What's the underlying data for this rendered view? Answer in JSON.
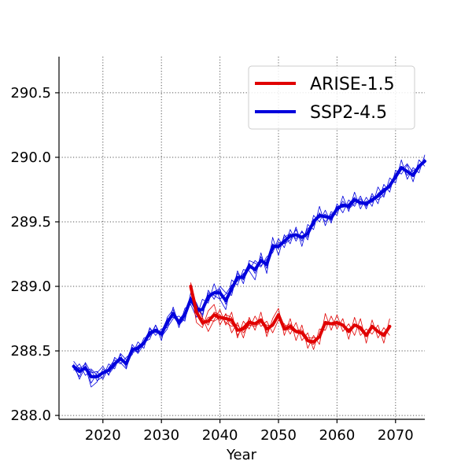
{
  "chart_data": {
    "type": "line",
    "title": "",
    "xlabel": "Year",
    "ylabel": "",
    "xlim": [
      2012.5,
      2075
    ],
    "ylim": [
      287.97,
      290.78
    ],
    "x_ticks": [
      2020,
      2030,
      2040,
      2050,
      2060,
      2070
    ],
    "y_ticks": [
      288.0,
      288.5,
      289.0,
      289.5,
      290.0,
      290.5
    ],
    "x_tick_labels": [
      "2020",
      "2030",
      "2040",
      "2050",
      "2060",
      "2070"
    ],
    "y_tick_labels": [
      "288.0",
      "288.5",
      "289.0",
      "289.5",
      "290.0",
      "290.5"
    ],
    "grid": "dotted",
    "legend_position": "top-right",
    "legend": [
      {
        "label": "ARISE-1.5",
        "color": "#e00000"
      },
      {
        "label": "SSP2-4.5",
        "color": "#0000dd"
      }
    ],
    "series": [
      {
        "name": "SSP2-4.5",
        "color": "#0000dd",
        "role": "mean",
        "x": [
          2015,
          2016,
          2017,
          2018,
          2019,
          2020,
          2021,
          2022,
          2023,
          2024,
          2025,
          2026,
          2027,
          2028,
          2029,
          2030,
          2031,
          2032,
          2033,
          2034,
          2035,
          2036,
          2037,
          2038,
          2039,
          2040,
          2041,
          2042,
          2043,
          2044,
          2045,
          2046,
          2047,
          2048,
          2049,
          2050,
          2051,
          2052,
          2053,
          2054,
          2055,
          2056,
          2057,
          2058,
          2059,
          2060,
          2061,
          2062,
          2063,
          2064,
          2065,
          2066,
          2067,
          2068,
          2069,
          2070,
          2071,
          2072,
          2073,
          2074,
          2075
        ],
        "y": [
          288.38,
          288.34,
          288.37,
          288.3,
          288.3,
          288.33,
          288.35,
          288.4,
          288.44,
          288.4,
          288.51,
          288.52,
          288.56,
          288.64,
          288.66,
          288.63,
          288.72,
          288.79,
          288.72,
          288.78,
          288.9,
          288.82,
          288.82,
          288.92,
          288.95,
          288.95,
          288.89,
          288.98,
          289.07,
          289.07,
          289.16,
          289.13,
          289.2,
          289.17,
          289.31,
          289.31,
          289.35,
          289.39,
          289.4,
          289.38,
          289.41,
          289.5,
          289.55,
          289.54,
          289.53,
          289.6,
          289.63,
          289.62,
          289.67,
          289.65,
          289.64,
          289.67,
          289.7,
          289.74,
          289.78,
          289.85,
          289.92,
          289.89,
          289.86,
          289.93,
          289.97
        ]
      },
      {
        "name": "ARISE-1.5",
        "color": "#e00000",
        "role": "mean",
        "x": [
          2035,
          2036,
          2037,
          2038,
          2039,
          2040,
          2041,
          2042,
          2043,
          2044,
          2045,
          2046,
          2047,
          2048,
          2049,
          2050,
          2051,
          2052,
          2053,
          2054,
          2055,
          2056,
          2057,
          2058,
          2059,
          2060,
          2061,
          2062,
          2063,
          2064,
          2065,
          2066,
          2067,
          2068,
          2069
        ],
        "y": [
          289.0,
          288.8,
          288.72,
          288.73,
          288.78,
          288.76,
          288.75,
          288.74,
          288.66,
          288.67,
          288.72,
          288.71,
          288.74,
          288.67,
          288.7,
          288.78,
          288.67,
          288.69,
          288.65,
          288.64,
          288.58,
          288.57,
          288.61,
          288.72,
          288.71,
          288.72,
          288.7,
          288.65,
          288.7,
          288.68,
          288.62,
          288.69,
          288.65,
          288.62,
          288.69
        ]
      }
    ],
    "ensemble_members": [
      {
        "series": "SSP2-4.5",
        "x_start": 2015,
        "y": [
          288.42,
          288.36,
          288.4,
          288.25,
          288.33,
          288.38,
          288.31,
          288.45,
          288.41,
          288.36,
          288.55,
          288.49,
          288.6,
          288.61,
          288.7,
          288.58,
          288.76,
          288.82,
          288.68,
          288.83,
          288.86,
          288.76,
          288.9,
          288.87,
          289.02,
          288.9,
          288.82,
          289.05,
          289.01,
          289.13,
          289.12,
          289.05,
          289.26,
          289.1,
          289.38,
          289.24,
          289.4,
          289.33,
          289.46,
          289.31,
          289.48,
          289.44,
          289.62,
          289.47,
          289.58,
          289.55,
          289.7,
          289.58,
          289.73,
          289.6,
          289.69,
          289.62,
          289.77,
          289.69,
          289.84,
          289.8,
          289.98,
          289.83,
          289.92,
          289.88,
          290.02
        ]
      },
      {
        "series": "SSP2-4.5",
        "x_start": 2015,
        "y": [
          288.35,
          288.4,
          288.31,
          288.35,
          288.27,
          288.3,
          288.4,
          288.36,
          288.48,
          288.43,
          288.47,
          288.57,
          288.52,
          288.68,
          288.62,
          288.67,
          288.68,
          288.75,
          288.77,
          288.73,
          288.95,
          288.87,
          288.76,
          288.97,
          288.9,
          289.0,
          288.95,
          288.93,
          289.12,
          289.02,
          289.2,
          289.18,
          289.15,
          289.23,
          289.26,
          289.37,
          289.3,
          289.44,
          289.35,
          289.43,
          289.36,
          289.55,
          289.5,
          289.59,
          289.49,
          289.64,
          289.57,
          289.67,
          289.62,
          289.7,
          289.6,
          289.72,
          289.64,
          289.79,
          289.73,
          289.9,
          289.87,
          289.94,
          289.81,
          289.98,
          289.93
        ]
      },
      {
        "series": "SSP2-4.5",
        "x_start": 2015,
        "y": [
          288.37,
          288.3,
          288.41,
          288.33,
          288.34,
          288.28,
          288.37,
          288.43,
          288.4,
          288.45,
          288.49,
          288.5,
          288.57,
          288.59,
          288.7,
          288.61,
          288.67,
          288.84,
          288.7,
          288.75,
          288.88,
          288.86,
          288.78,
          288.95,
          288.93,
          288.9,
          288.94,
          289.01,
          289.04,
          289.1,
          289.13,
          289.2,
          289.16,
          289.21,
          289.28,
          289.34,
          289.33,
          289.36,
          289.44,
          289.35,
          289.45,
          289.47,
          289.57,
          289.5,
          289.56,
          289.58,
          289.66,
          289.6,
          289.64,
          289.68,
          289.62,
          289.7,
          289.67,
          289.71,
          289.8,
          289.83,
          289.9,
          289.95,
          289.88,
          289.94,
          289.96
        ]
      },
      {
        "series": "SSP2-4.5",
        "x_start": 2015,
        "y": [
          288.4,
          288.28,
          288.38,
          288.22,
          288.26,
          288.36,
          288.32,
          288.38,
          288.47,
          288.37,
          288.53,
          288.48,
          288.55,
          288.67,
          288.64,
          288.65,
          288.75,
          288.76,
          288.74,
          288.8,
          288.92,
          288.78,
          288.83,
          288.89,
          288.96,
          288.98,
          288.86,
          288.99,
          289.1,
          289.05,
          289.18,
          289.1,
          289.23,
          289.14,
          289.33,
          289.29,
          289.38,
          289.41,
          289.37,
          289.42,
          289.38,
          289.52,
          289.53,
          289.56,
          289.51,
          289.62,
          289.61,
          289.64,
          289.69,
          289.63,
          289.66,
          289.65,
          289.72,
          289.76,
          289.76,
          289.87,
          289.93,
          289.86,
          289.9,
          289.91,
          289.99
        ]
      },
      {
        "series": "SSP2-4.5",
        "x_start": 2015,
        "y": [
          288.36,
          288.37,
          288.35,
          288.36,
          288.31,
          288.34,
          288.36,
          288.39,
          288.43,
          288.41,
          288.5,
          288.54,
          288.57,
          288.62,
          288.65,
          288.64,
          288.72,
          288.78,
          288.73,
          288.77,
          288.89,
          288.84,
          288.81,
          288.91,
          288.94,
          288.97,
          288.88,
          288.96,
          289.08,
          289.08,
          289.17,
          289.12,
          289.2,
          289.18,
          289.3,
          289.32,
          289.34,
          289.4,
          289.39,
          289.39,
          289.4,
          289.51,
          289.54,
          289.55,
          289.54,
          289.59,
          289.62,
          289.61,
          289.66,
          289.64,
          289.65,
          289.67,
          289.7,
          289.75,
          289.77,
          289.84,
          289.91,
          289.88,
          289.85,
          289.94,
          289.96
        ]
      },
      {
        "series": "ARISE-1.5",
        "x_start": 2035,
        "y": [
          288.98,
          288.72,
          288.68,
          288.81,
          288.86,
          288.7,
          288.79,
          288.64,
          288.72,
          288.6,
          288.76,
          288.66,
          288.8,
          288.61,
          288.75,
          288.83,
          288.62,
          288.75,
          288.58,
          288.7,
          288.52,
          288.62,
          288.55,
          288.79,
          288.66,
          288.78,
          288.65,
          288.71,
          288.62,
          288.75,
          288.56,
          288.74,
          288.6,
          288.68,
          288.62
        ]
      },
      {
        "series": "ARISE-1.5",
        "x_start": 2035,
        "y": [
          289.03,
          288.85,
          288.76,
          288.65,
          288.74,
          288.82,
          288.7,
          288.8,
          288.6,
          288.73,
          288.67,
          288.77,
          288.69,
          288.73,
          288.64,
          288.74,
          288.71,
          288.63,
          288.72,
          288.58,
          288.64,
          288.51,
          288.67,
          288.66,
          288.77,
          288.67,
          288.75,
          288.59,
          288.76,
          288.62,
          288.67,
          288.63,
          288.7,
          288.56,
          288.75
        ]
      },
      {
        "series": "ARISE-1.5",
        "x_start": 2035,
        "y": [
          288.95,
          288.78,
          288.75,
          288.7,
          288.8,
          288.78,
          288.72,
          288.69,
          288.7,
          288.64,
          288.7,
          288.69,
          288.72,
          288.7,
          288.69,
          288.76,
          288.69,
          288.71,
          288.66,
          288.66,
          288.6,
          288.6,
          288.6,
          288.7,
          288.71,
          288.73,
          288.69,
          288.67,
          288.7,
          288.67,
          288.63,
          288.69,
          288.66,
          288.63,
          288.68
        ]
      },
      {
        "series": "ARISE-1.5",
        "x_start": 2035,
        "y": [
          289.02,
          288.82,
          288.7,
          288.76,
          288.77,
          288.74,
          288.78,
          288.76,
          288.62,
          288.69,
          288.73,
          288.72,
          288.75,
          288.64,
          288.71,
          288.79,
          288.66,
          288.67,
          288.64,
          288.63,
          288.57,
          288.55,
          288.62,
          288.73,
          288.7,
          288.7,
          288.71,
          288.64,
          288.71,
          288.66,
          288.61,
          288.7,
          288.64,
          288.61,
          288.7
        ]
      },
      {
        "series": "ARISE-1.5",
        "x_start": 2035,
        "y": [
          289.01,
          288.83,
          288.71,
          288.74,
          288.73,
          288.76,
          288.76,
          288.71,
          288.66,
          288.69,
          288.74,
          288.71,
          288.74,
          288.67,
          288.71,
          288.78,
          288.67,
          288.69,
          288.65,
          288.63,
          288.59,
          288.57,
          288.61,
          288.72,
          288.71,
          288.72,
          288.7,
          288.64,
          288.7,
          288.69,
          288.62,
          288.69,
          288.65,
          288.64,
          288.7
        ]
      }
    ]
  }
}
